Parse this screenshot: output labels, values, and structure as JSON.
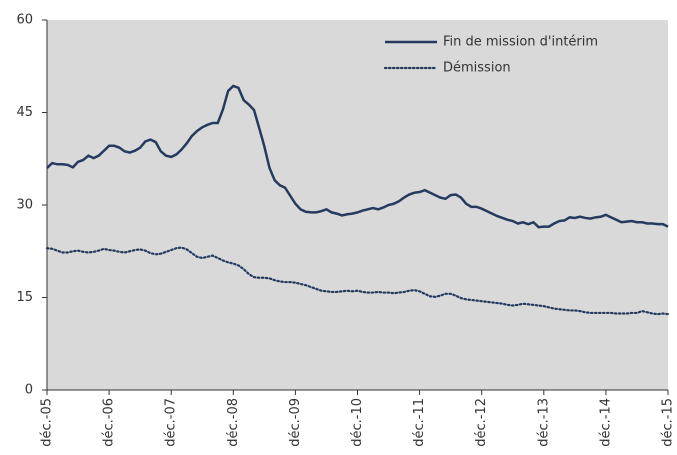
{
  "chart_data": {
    "type": "line",
    "categories": [
      "déc.-05",
      null,
      null,
      null,
      null,
      null,
      null,
      null,
      null,
      null,
      null,
      null,
      "déc.-06",
      null,
      null,
      null,
      null,
      null,
      null,
      null,
      null,
      null,
      null,
      null,
      "déc.-07",
      null,
      null,
      null,
      null,
      null,
      null,
      null,
      null,
      null,
      null,
      null,
      "déc.-08",
      null,
      null,
      null,
      null,
      null,
      null,
      null,
      null,
      null,
      null,
      null,
      "déc.-09",
      null,
      null,
      null,
      null,
      null,
      null,
      null,
      null,
      null,
      null,
      null,
      "déc.-10",
      null,
      null,
      null,
      null,
      null,
      null,
      null,
      null,
      null,
      null,
      null,
      "déc.-11",
      null,
      null,
      null,
      null,
      null,
      null,
      null,
      null,
      null,
      null,
      null,
      "déc.-12",
      null,
      null,
      null,
      null,
      null,
      null,
      null,
      null,
      null,
      null,
      null,
      "déc.-13",
      null,
      null,
      null,
      null,
      null,
      null,
      null,
      null,
      null,
      null,
      null,
      "déc.-14",
      null,
      null,
      null,
      null,
      null,
      null,
      null,
      null,
      null,
      null,
      null,
      "déc.-15"
    ],
    "series": [
      {
        "name": "Fin de mission d'intérim",
        "color": "#243a5e",
        "dash": "solid",
        "values": [
          36.0,
          36.8,
          36.6,
          36.6,
          36.5,
          36.1,
          37.0,
          37.3,
          38.0,
          37.6,
          38.0,
          38.8,
          39.6,
          39.6,
          39.3,
          38.7,
          38.5,
          38.8,
          39.3,
          40.3,
          40.6,
          40.2,
          38.7,
          38.0,
          37.8,
          38.2,
          39.0,
          40.0,
          41.2,
          42.0,
          42.6,
          43.0,
          43.3,
          43.3,
          45.5,
          48.5,
          49.3,
          49.0,
          47.0,
          46.3,
          45.4,
          42.5,
          39.5,
          36.0,
          34.0,
          33.2,
          32.8,
          31.5,
          30.2,
          29.3,
          28.9,
          28.8,
          28.8,
          29.0,
          29.3,
          28.8,
          28.6,
          28.3,
          28.5,
          28.6,
          28.8,
          29.1,
          29.3,
          29.5,
          29.3,
          29.6,
          30.0,
          30.2,
          30.6,
          31.2,
          31.7,
          32.0,
          32.1,
          32.4,
          32.0,
          31.6,
          31.2,
          31.0,
          31.6,
          31.7,
          31.2,
          30.2,
          29.7,
          29.7,
          29.4,
          29.0,
          28.6,
          28.2,
          27.9,
          27.6,
          27.4,
          27.0,
          27.2,
          26.9,
          27.2,
          26.4,
          26.5,
          26.5,
          27.0,
          27.4,
          27.5,
          28.0,
          27.9,
          28.1,
          27.9,
          27.8,
          28.0,
          28.1,
          28.4,
          28.0,
          27.6,
          27.2,
          27.3,
          27.4,
          27.2,
          27.2,
          27.0,
          27.0,
          26.9,
          26.9,
          26.5
        ]
      },
      {
        "name": "Démission",
        "color": "#243a5e",
        "dash": "dotted",
        "values": [
          23.0,
          22.9,
          22.6,
          22.3,
          22.3,
          22.5,
          22.6,
          22.4,
          22.3,
          22.4,
          22.6,
          22.9,
          22.7,
          22.6,
          22.4,
          22.3,
          22.5,
          22.7,
          22.8,
          22.6,
          22.2,
          22.0,
          22.1,
          22.4,
          22.7,
          23.0,
          23.1,
          22.8,
          22.2,
          21.6,
          21.4,
          21.6,
          21.8,
          21.4,
          21.0,
          20.7,
          20.5,
          20.2,
          19.6,
          18.8,
          18.3,
          18.2,
          18.2,
          18.1,
          17.8,
          17.6,
          17.5,
          17.5,
          17.4,
          17.2,
          17.0,
          16.7,
          16.4,
          16.1,
          16.0,
          15.9,
          15.9,
          16.0,
          16.1,
          16.0,
          16.1,
          15.9,
          15.8,
          15.8,
          15.9,
          15.8,
          15.8,
          15.7,
          15.8,
          15.9,
          16.1,
          16.2,
          16.0,
          15.6,
          15.2,
          15.1,
          15.3,
          15.6,
          15.6,
          15.3,
          14.9,
          14.7,
          14.6,
          14.5,
          14.4,
          14.3,
          14.2,
          14.1,
          14.0,
          13.8,
          13.7,
          13.8,
          14.0,
          13.9,
          13.8,
          13.7,
          13.6,
          13.4,
          13.2,
          13.1,
          13.0,
          12.9,
          12.9,
          12.8,
          12.6,
          12.5,
          12.5,
          12.5,
          12.5,
          12.5,
          12.4,
          12.4,
          12.4,
          12.5,
          12.5,
          12.8,
          12.6,
          12.4,
          12.3,
          12.4,
          12.3
        ]
      }
    ],
    "ylim": [
      0,
      60
    ],
    "yticks": [
      0,
      15,
      30,
      45,
      60
    ],
    "legend": "upper right",
    "background": "#d9d9d9"
  }
}
